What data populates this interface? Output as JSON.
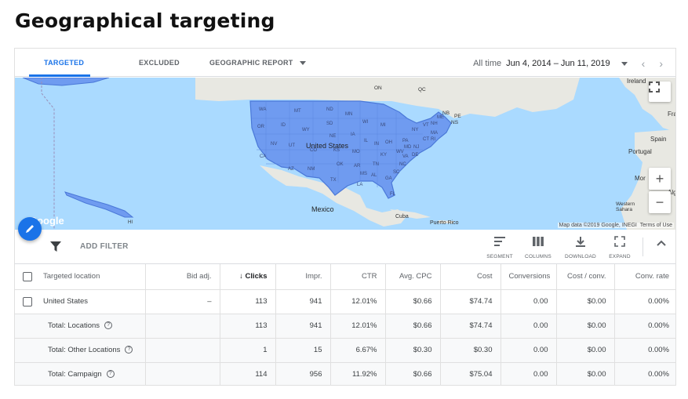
{
  "page_title": "Geographical targeting",
  "tabs": [
    {
      "label": "TARGETED",
      "active": true
    },
    {
      "label": "EXCLUDED",
      "active": false
    },
    {
      "label": "GEOGRAPHIC REPORT",
      "active": false
    }
  ],
  "date_range": {
    "prefix": "All time",
    "value": "Jun 4, 2014 – Jun 11, 2019"
  },
  "map": {
    "labels": {
      "country_us": "United States",
      "mexico": "Mexico",
      "cuba": "Cuba",
      "puerto_rico": "Puerto Rico",
      "ireland": "Ireland",
      "france": "Fra",
      "spain": "Spain",
      "portugal": "Portugal",
      "morocco": "Mor",
      "algeria": "Alg",
      "western_sahara": "Western Sahara",
      "on": "ON",
      "qc": "QC",
      "nb": "NB",
      "pe": "PE",
      "ns": "NS",
      "hi": "HI"
    },
    "states": [
      "WA",
      "MT",
      "ND",
      "MN",
      "OR",
      "ID",
      "SD",
      "WI",
      "MI",
      "WY",
      "NE",
      "IA",
      "NV",
      "UT",
      "CO",
      "KS",
      "MO",
      "IL",
      "IN",
      "OH",
      "PA",
      "NY",
      "VT",
      "NH",
      "ME",
      "MA",
      "CT",
      "RI",
      "NJ",
      "MD",
      "DE",
      "WV",
      "VA",
      "KY",
      "CA",
      "AZ",
      "NM",
      "OK",
      "AR",
      "TN",
      "NC",
      "SC",
      "MS",
      "AL",
      "GA",
      "LA",
      "TX",
      "FL"
    ],
    "attribution": "Map data ©2019 Google, INEGI",
    "terms": "Terms of Use",
    "logo": "Google",
    "accent_color": "#6f9bf0"
  },
  "toolbar": {
    "add_filter": "ADD FILTER",
    "tools": [
      {
        "label": "SEGMENT",
        "icon": "segment-icon"
      },
      {
        "label": "COLUMNS",
        "icon": "columns-icon"
      },
      {
        "label": "DOWNLOAD",
        "icon": "download-icon"
      },
      {
        "label": "EXPAND",
        "icon": "expand-icon"
      }
    ]
  },
  "table": {
    "columns": [
      "Targeted location",
      "Bid adj.",
      "Clicks",
      "Impr.",
      "CTR",
      "Avg. CPC",
      "Cost",
      "Conversions",
      "Cost / conv.",
      "Conv. rate"
    ],
    "sort_arrow": "↓",
    "rows": [
      {
        "location": "United States",
        "bid": "–",
        "clicks": "113",
        "impr": "941",
        "ctr": "12.01%",
        "cpc": "$0.66",
        "cost": "$74.74",
        "conv": "0.00",
        "cost_conv": "$0.00",
        "conv_rate": "0.00%"
      }
    ],
    "totals": [
      {
        "location": "Total: Locations",
        "bid": "",
        "clicks": "113",
        "impr": "941",
        "ctr": "12.01%",
        "cpc": "$0.66",
        "cost": "$74.74",
        "conv": "0.00",
        "cost_conv": "$0.00",
        "conv_rate": "0.00%"
      },
      {
        "location": "Total: Other Locations",
        "bid": "",
        "clicks": "1",
        "impr": "15",
        "ctr": "6.67%",
        "cpc": "$0.30",
        "cost": "$0.30",
        "conv": "0.00",
        "cost_conv": "$0.00",
        "conv_rate": "0.00%"
      },
      {
        "location": "Total: Campaign",
        "bid": "",
        "clicks": "114",
        "impr": "956",
        "ctr": "11.92%",
        "cpc": "$0.66",
        "cost": "$75.04",
        "conv": "0.00",
        "cost_conv": "$0.00",
        "conv_rate": "0.00%"
      }
    ],
    "help_glyph": "?"
  }
}
